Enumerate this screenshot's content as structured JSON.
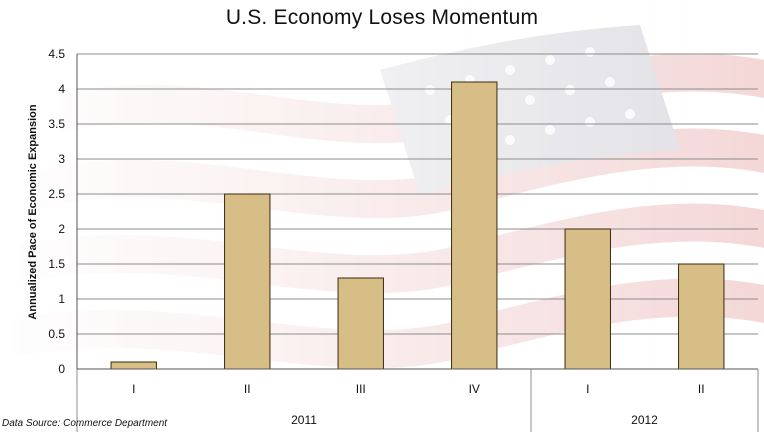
{
  "chart_data": {
    "type": "bar",
    "title": "U.S. Economy Loses Momentum",
    "ylabel": "Annualized Pace of Economic Expansion",
    "xlabel": "",
    "ylim": [
      0,
      4.5
    ],
    "yticks": [
      "0",
      "0.5",
      "1",
      "1.5",
      "2",
      "2.5",
      "3",
      "3.5",
      "4",
      "4.5"
    ],
    "grid": true,
    "legend": "none",
    "categories": [
      "I",
      "II",
      "III",
      "IV",
      "I",
      "II"
    ],
    "groups": [
      {
        "label": "2011",
        "count": 4
      },
      {
        "label": "2012",
        "count": 2
      }
    ],
    "values": [
      0.1,
      2.5,
      1.3,
      4.1,
      2.0,
      1.5
    ],
    "bar_color": "#d6be86",
    "bar_edge": "#3a2a10"
  },
  "footer": {
    "source": "Data Source: Commerce Department"
  },
  "background": {
    "theme": "american-flag"
  }
}
